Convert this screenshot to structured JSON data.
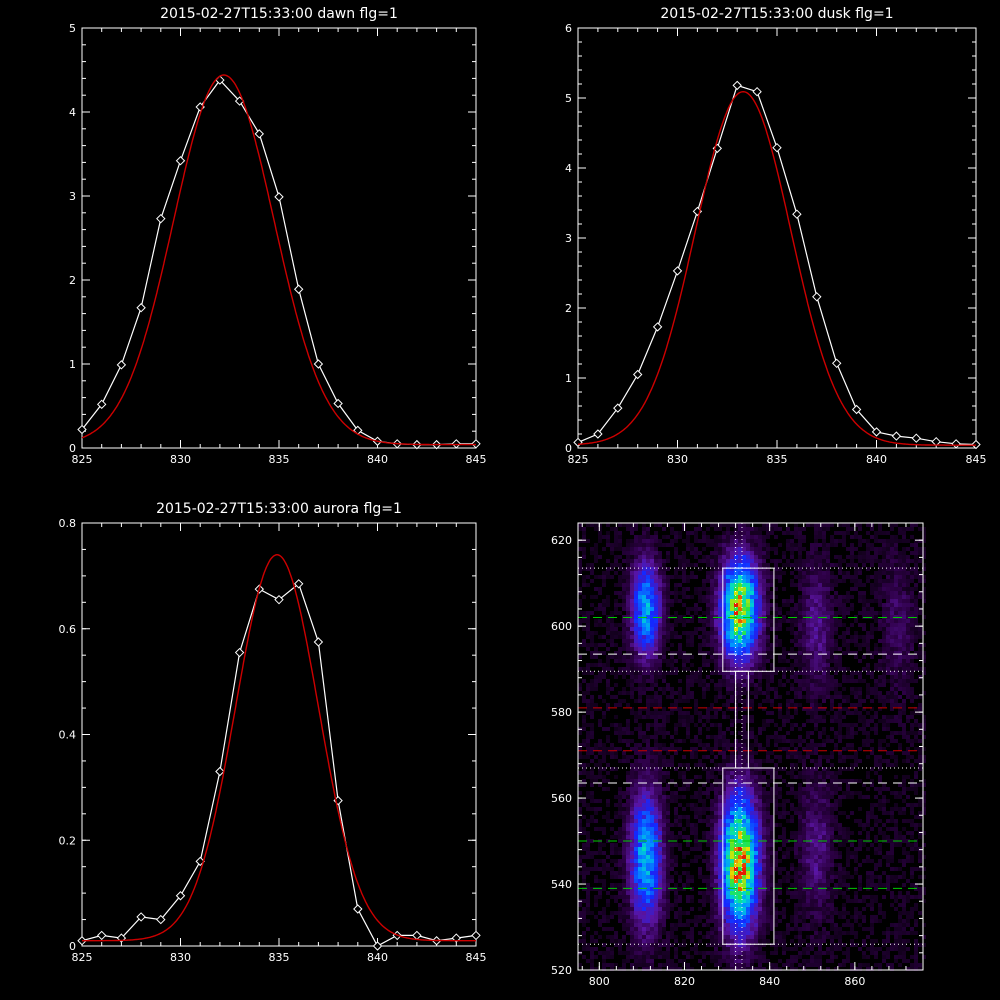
{
  "chart_data": [
    {
      "type": "line",
      "title": "2015-02-27T15:33:00 dawn flg=1",
      "xlim": [
        825,
        845
      ],
      "ylim": [
        0,
        5
      ],
      "xticks": [
        825,
        830,
        835,
        840,
        845
      ],
      "yticks": [
        0,
        1,
        2,
        3,
        4,
        5
      ],
      "x": [
        825,
        826,
        827,
        828,
        829,
        830,
        831,
        832,
        833,
        834,
        835,
        836,
        837,
        838,
        839,
        840,
        841,
        842,
        843,
        844,
        845
      ],
      "series": [
        {
          "type": "data",
          "color": "#ffffff",
          "markers": "diamond",
          "values": [
            0.22,
            0.52,
            0.99,
            1.67,
            2.73,
            3.42,
            4.06,
            4.38,
            4.13,
            3.74,
            2.99,
            1.89,
            1.0,
            0.53,
            0.21,
            0.08,
            0.05,
            0.04,
            0.04,
            0.05,
            0.05
          ]
        },
        {
          "type": "fit",
          "color": "#cc0000",
          "amp": 4.4,
          "center": 832.2,
          "sigma": 2.55,
          "offset": 0.04
        }
      ]
    },
    {
      "type": "line",
      "title": "2015-02-27T15:33:00 dusk flg=1",
      "xlim": [
        825,
        845
      ],
      "ylim": [
        0,
        6
      ],
      "xticks": [
        825,
        830,
        835,
        840,
        845
      ],
      "yticks": [
        0,
        1,
        2,
        3,
        4,
        5,
        6
      ],
      "x": [
        825,
        826,
        827,
        828,
        829,
        830,
        831,
        832,
        833,
        834,
        835,
        836,
        837,
        838,
        839,
        840,
        841,
        842,
        843,
        844,
        845
      ],
      "series": [
        {
          "type": "data",
          "color": "#ffffff",
          "markers": "diamond",
          "values": [
            0.08,
            0.2,
            0.57,
            1.05,
            1.73,
            2.53,
            3.38,
            4.28,
            5.18,
            5.09,
            4.29,
            3.34,
            2.16,
            1.21,
            0.55,
            0.23,
            0.17,
            0.14,
            0.09,
            0.06,
            0.05
          ]
        },
        {
          "type": "fit",
          "color": "#cc0000",
          "amp": 5.05,
          "center": 833.3,
          "sigma": 2.4,
          "offset": 0.04
        }
      ]
    },
    {
      "type": "line",
      "title": "2015-02-27T15:33:00 aurora flg=1",
      "xlim": [
        825,
        845
      ],
      "ylim": [
        0,
        0.8
      ],
      "xticks": [
        825,
        830,
        835,
        840,
        845
      ],
      "yticks": [
        0,
        0.2,
        0.4,
        0.6,
        0.8
      ],
      "x": [
        825,
        826,
        827,
        828,
        829,
        830,
        831,
        832,
        833,
        834,
        835,
        836,
        837,
        838,
        839,
        840,
        841,
        842,
        843,
        844,
        845
      ],
      "series": [
        {
          "type": "data",
          "color": "#ffffff",
          "markers": "diamond",
          "values": [
            0.01,
            0.02,
            0.015,
            0.055,
            0.05,
            0.095,
            0.16,
            0.33,
            0.555,
            0.675,
            0.655,
            0.685,
            0.575,
            0.275,
            0.07,
            0.0,
            0.02,
            0.02,
            0.01,
            0.015,
            0.02
          ]
        },
        {
          "type": "fit",
          "color": "#cc0000",
          "amp": 0.73,
          "center": 834.9,
          "sigma": 2.1,
          "offset": 0.01
        }
      ]
    },
    {
      "type": "heatmap",
      "title": "",
      "xlim": [
        795,
        876
      ],
      "ylim": [
        520,
        624
      ],
      "xticks": [
        800,
        820,
        840,
        860
      ],
      "yticks": [
        520,
        540,
        560,
        580,
        600,
        620
      ],
      "blobs": [
        {
          "x": 811,
          "y": 604,
          "sx": 2.2,
          "sy": 7.0,
          "amp": 0.48
        },
        {
          "x": 811,
          "y": 546,
          "sx": 2.4,
          "sy": 10.0,
          "amp": 0.5
        },
        {
          "x": 833,
          "y": 604,
          "sx": 2.8,
          "sy": 7.5,
          "amp": 0.85
        },
        {
          "x": 833,
          "y": 545,
          "sx": 2.8,
          "sy": 10.0,
          "amp": 0.9
        },
        {
          "x": 851,
          "y": 600,
          "sx": 2.5,
          "sy": 10.0,
          "amp": 0.12
        },
        {
          "x": 851,
          "y": 548,
          "sx": 2.5,
          "sy": 10.0,
          "amp": 0.12
        },
        {
          "x": 870,
          "y": 600,
          "sx": 2.5,
          "sy": 10.0,
          "amp": 0.08
        }
      ],
      "lines": [
        {
          "y": 613.5,
          "color": "#ffffff",
          "style": "dot"
        },
        {
          "y": 602,
          "color": "#00cc00",
          "style": "dash"
        },
        {
          "y": 593.5,
          "color": "#ffffff",
          "style": "dash"
        },
        {
          "y": 589.5,
          "color": "#ffffff",
          "style": "dot"
        },
        {
          "y": 581,
          "color": "#cc0000",
          "style": "dash"
        },
        {
          "y": 571,
          "color": "#cc0000",
          "style": "dash"
        },
        {
          "y": 567,
          "color": "#ffffff",
          "style": "dot"
        },
        {
          "y": 563.5,
          "color": "#ffffff",
          "style": "dash"
        },
        {
          "y": 550,
          "color": "#00cc00",
          "style": "dash"
        },
        {
          "y": 539,
          "color": "#00cc00",
          "style": "dash"
        },
        {
          "y": 526,
          "color": "#ffffff",
          "style": "dot"
        }
      ],
      "vlines": [
        {
          "x": 832,
          "color": "#ffffff",
          "style": "dot"
        },
        {
          "x": 833.5,
          "color": "#ffffff",
          "style": "dot"
        }
      ],
      "boxes": [
        {
          "x0": 829,
          "x1": 841,
          "y0": 589.5,
          "y1": 613.5
        },
        {
          "x0": 829,
          "x1": 841,
          "y0": 526,
          "y1": 567
        },
        {
          "x0": 832,
          "x1": 835,
          "y0": 567,
          "y1": 589.5
        }
      ]
    }
  ]
}
